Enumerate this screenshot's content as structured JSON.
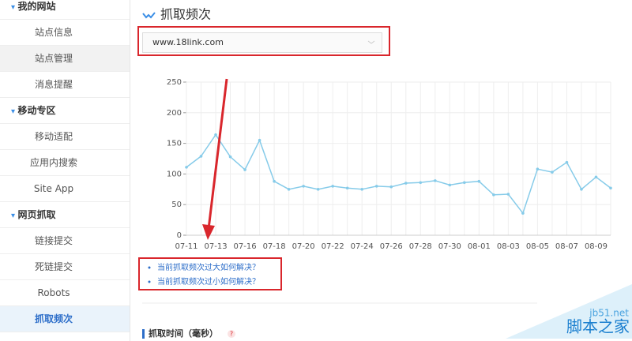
{
  "sidebar": {
    "sections": [
      {
        "title": "我的网站",
        "items": [
          "站点信息",
          "站点管理",
          "消息提醒"
        ]
      },
      {
        "title": "移动专区",
        "items": [
          "移动适配",
          "应用内搜索",
          "Site App"
        ]
      },
      {
        "title": "网页抓取",
        "items": [
          "链接提交",
          "死链提交",
          "Robots",
          "抓取频次"
        ]
      }
    ]
  },
  "page": {
    "title": "抓取频次",
    "site_select": "www.18link.com",
    "links": [
      "当前抓取频次过大如何解决？",
      "当前抓取频次过小如何解决？"
    ],
    "section_title": "抓取时间（毫秒）",
    "help": "?"
  },
  "watermark": {
    "domain": "jb51.net",
    "name": "脚本之家"
  },
  "chart_data": {
    "type": "line",
    "categories": [
      "07-11",
      null,
      "07-13",
      null,
      "07-16",
      null,
      "07-18",
      null,
      "07-20",
      null,
      "07-22",
      null,
      "07-24",
      null,
      "07-26",
      null,
      "07-28",
      null,
      "07-30",
      null,
      "08-01",
      null,
      "08-03",
      null,
      "08-05",
      null,
      "08-07",
      null,
      "08-09",
      null
    ],
    "series": [
      {
        "color": "#86cbe9",
        "values": [
          111,
          129,
          164,
          128,
          107,
          155,
          88,
          75,
          80,
          75,
          80,
          77,
          75,
          80,
          79,
          85,
          86,
          89,
          82,
          86,
          88,
          66,
          67,
          36,
          108,
          103,
          119,
          75,
          95,
          77
        ]
      }
    ],
    "ylim": [
      0,
      250
    ],
    "yticks": [
      0,
      50,
      100,
      150,
      200,
      250
    ],
    "grid": true
  }
}
